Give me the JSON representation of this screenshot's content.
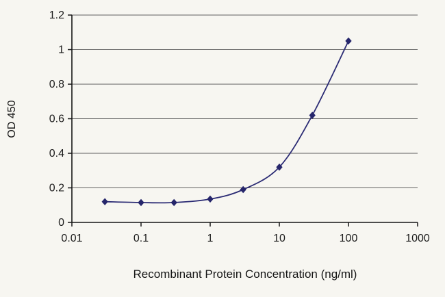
{
  "figure": {
    "kind": "elisa-standard-curve"
  },
  "chart_data": {
    "type": "line",
    "x": [
      0.03,
      0.1,
      0.3,
      1,
      3,
      10,
      30,
      100
    ],
    "y": [
      0.12,
      0.115,
      0.115,
      0.135,
      0.19,
      0.32,
      0.62,
      1.05
    ],
    "series_name": "OD 450",
    "title": "",
    "xlabel": "Recombinant Protein Concentration (ng/ml)",
    "ylabel": "OD 450",
    "x_scale": "log",
    "xlim": [
      0.01,
      1000
    ],
    "ylim": [
      0,
      1.2
    ],
    "x_ticks": [
      0.01,
      0.1,
      1,
      10,
      100,
      1000
    ],
    "x_tick_labels": [
      "0.01",
      "0.1",
      "1",
      "10",
      "100",
      "1000"
    ],
    "y_ticks": [
      0,
      0.2,
      0.4,
      0.6,
      0.8,
      1,
      1.2
    ],
    "y_tick_labels": [
      "0",
      "0.2",
      "0.4",
      "0.6",
      "0.8",
      "1",
      "1.2"
    ],
    "grid": "horizontal",
    "legend": "none",
    "marker": "diamond",
    "line_color": "#2b2b74",
    "marker_color": "#26266b",
    "grid_color": "#5f5f5f",
    "axis_color": "#151515",
    "background": "#f7f6f1"
  }
}
